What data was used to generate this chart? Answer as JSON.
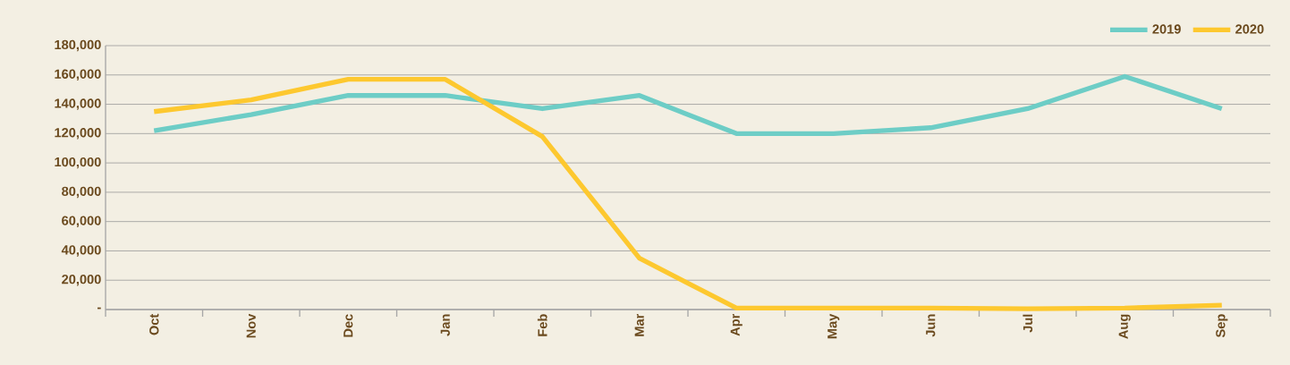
{
  "chart_data": {
    "type": "line",
    "categories": [
      "Oct",
      "Nov",
      "Dec",
      "Jan",
      "Feb",
      "Mar",
      "Apr",
      "May",
      "Jun",
      "Jul",
      "Aug",
      "Sep"
    ],
    "series": [
      {
        "name": "2019",
        "color": "#6dcdc6",
        "values": [
          122000,
          133000,
          146000,
          146000,
          137000,
          146000,
          120000,
          120000,
          124000,
          137000,
          159000,
          137000
        ]
      },
      {
        "name": "2020",
        "color": "#fdc82f",
        "values": [
          135000,
          143000,
          157000,
          157000,
          118000,
          35000,
          1000,
          1000,
          1000,
          500,
          1000,
          3000
        ]
      }
    ],
    "ylim": [
      0,
      180000
    ],
    "yticks": [
      {
        "value": 0,
        "label": "-"
      },
      {
        "value": 20000,
        "label": "20,000"
      },
      {
        "value": 40000,
        "label": "40,000"
      },
      {
        "value": 60000,
        "label": "60,000"
      },
      {
        "value": 80000,
        "label": "80,000"
      },
      {
        "value": 100000,
        "label": "100,000"
      },
      {
        "value": 120000,
        "label": "120,000"
      },
      {
        "value": 140000,
        "label": "140,000"
      },
      {
        "value": 160000,
        "label": "160,000"
      },
      {
        "value": 180000,
        "label": "180,000"
      }
    ],
    "grid": "y",
    "legend": "top right",
    "marker": "none",
    "line_style": "solid"
  }
}
